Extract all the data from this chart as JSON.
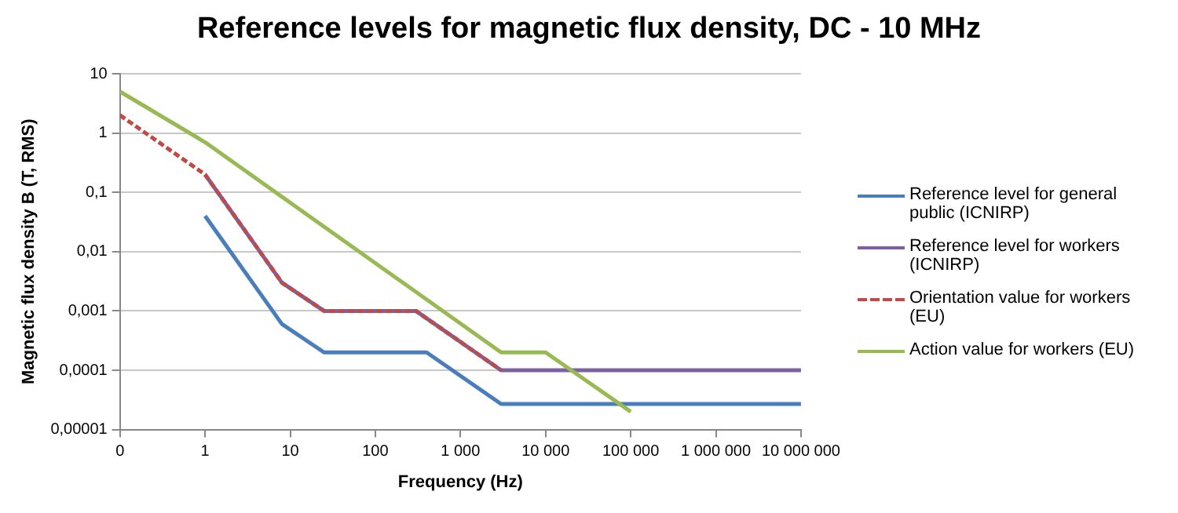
{
  "chart_data": {
    "type": "line",
    "title": "Reference levels for magnetic flux density, DC - 10 MHz",
    "xlabel": "Frequency (Hz)",
    "ylabel": "Magnetic flux density B (T, RMS)",
    "log": "xy",
    "grid": "y",
    "legend": "right",
    "marker": "none",
    "xlim": [
      0.1,
      10000000
    ],
    "xticks": [
      {
        "value": 0.1,
        "label": "0"
      },
      1,
      10,
      100,
      {
        "value": 1000,
        "label": "1 000"
      },
      {
        "value": 10000,
        "label": "10 000"
      },
      {
        "value": 100000,
        "label": "100 000"
      },
      {
        "value": 1000000,
        "label": "1 000 000"
      },
      {
        "value": 10000000,
        "label": "10 000 000"
      }
    ],
    "ylim": [
      1e-05,
      10
    ],
    "yticks": [
      {
        "value": 1e-05,
        "label": "0,00001"
      },
      {
        "value": 0.0001,
        "label": "0,0001"
      },
      {
        "value": 0.001,
        "label": "0,001"
      },
      {
        "value": 0.01,
        "label": "0,01"
      },
      {
        "value": 0.1,
        "label": "0,1"
      },
      1,
      10
    ],
    "series": [
      {
        "name": "Reference level for general public (ICNIRP)",
        "color": "#4a7ebb",
        "line_style": "solid",
        "x": [
          1,
          8,
          25,
          400,
          3000,
          10000000
        ],
        "values": [
          0.04,
          0.0006,
          0.0002,
          0.0002,
          2.7e-05,
          2.7e-05
        ]
      },
      {
        "name": "Reference level for workers (ICNIRP)",
        "color": "#7d60a0",
        "line_style": "solid",
        "x": [
          1,
          8,
          25,
          300,
          3000,
          10000000
        ],
        "values": [
          0.2,
          0.003,
          0.001,
          0.001,
          0.0001,
          0.0001
        ]
      },
      {
        "name": "Orientation value for workers (EU)",
        "color": "#be4b48",
        "line_style": "dashed",
        "x": [
          0.1,
          1,
          8,
          25,
          300,
          3000
        ],
        "values": [
          2,
          0.2,
          0.003,
          0.001,
          0.001,
          0.0001
        ]
      },
      {
        "name": "Action value for workers (EU)",
        "color": "#98b954",
        "line_style": "solid",
        "x": [
          0.1,
          1,
          3000,
          10000,
          100000
        ],
        "values": [
          5,
          0.7,
          0.0002,
          0.0002,
          2e-05
        ]
      }
    ]
  }
}
